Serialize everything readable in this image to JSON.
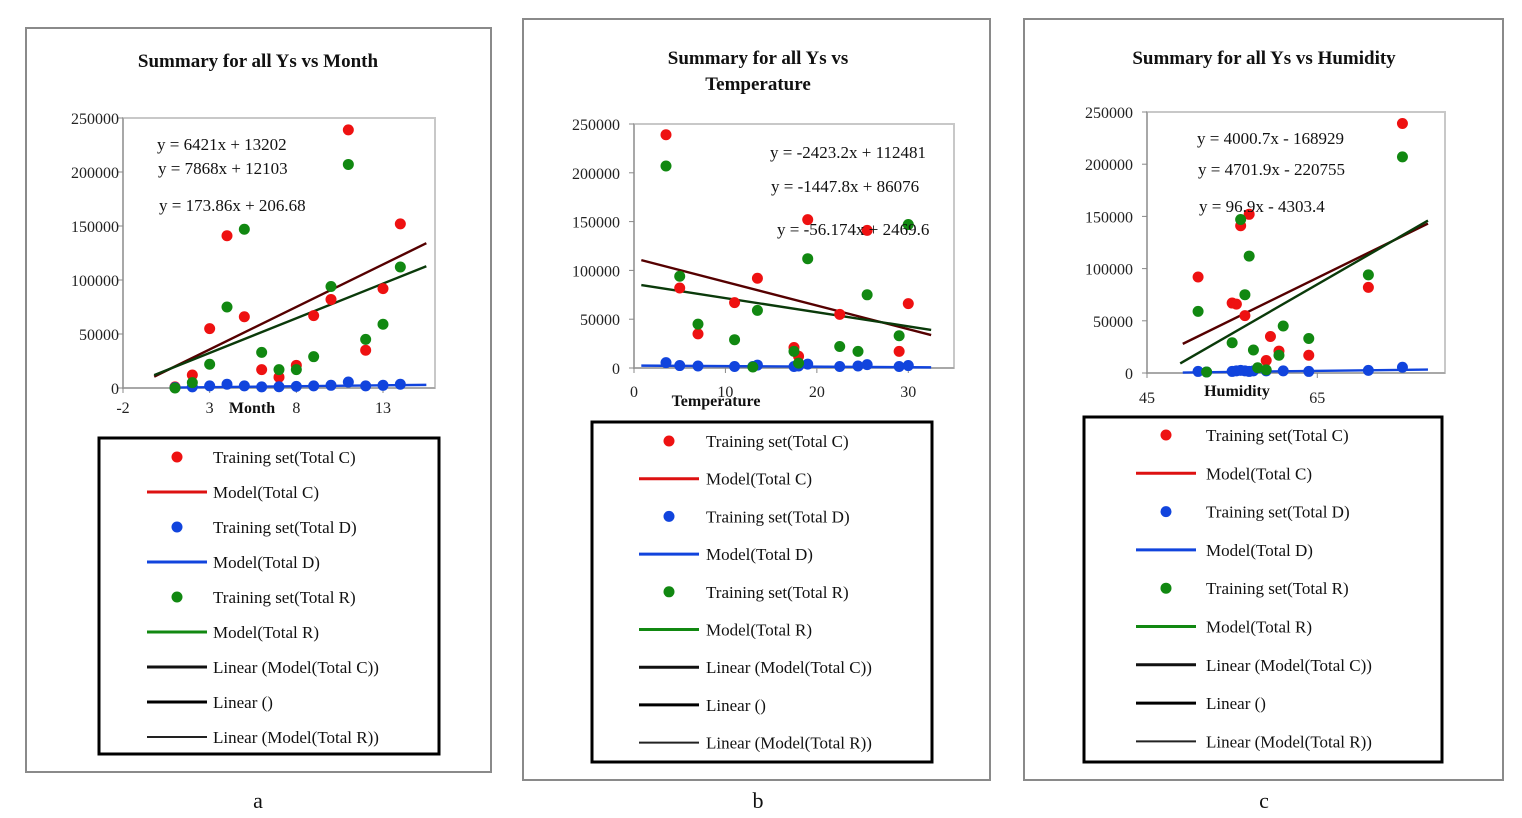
{
  "legend_entries": [
    {
      "label": "Training set(Total C)",
      "kind": "dot",
      "color": "#ee1111"
    },
    {
      "label": "Model(Total C)",
      "kind": "line",
      "color": "#dd1111",
      "w": 3
    },
    {
      "label": "Training set(Total D)",
      "kind": "dot",
      "color": "#1144dd"
    },
    {
      "label": "Model(Total D)",
      "kind": "line",
      "color": "#1144dd",
      "w": 3
    },
    {
      "label": "Training set(Total R)",
      "kind": "dot",
      "color": "#118811"
    },
    {
      "label": "Model(Total R)",
      "kind": "line",
      "color": "#118811",
      "w": 3
    },
    {
      "label": "Linear (Model(Total C))",
      "kind": "line",
      "color": "#111111",
      "w": 3
    },
    {
      "label": "Linear ()",
      "kind": "line",
      "color": "#000000",
      "w": 3
    },
    {
      "label": "Linear (Model(Total R))",
      "kind": "line",
      "color": "#222222",
      "w": 2
    }
  ],
  "colors": {
    "C": "#ee1111",
    "D": "#1144dd",
    "R": "#118811",
    "lineC": "#550000",
    "lineR": "#0a3a0a",
    "lineD": "#1144dd"
  },
  "chart_data": [
    {
      "type": "scatter",
      "panel_label": "a",
      "title": "Summary for all Ys vs Month",
      "xlabel": "Month",
      "ylabel": "",
      "xlim": [
        -2,
        16
      ],
      "ylim": [
        0,
        250000
      ],
      "xticks": [
        "-2",
        "3",
        "8",
        "13"
      ],
      "xtick_values": [
        -2,
        3,
        8,
        13
      ],
      "yticks": [
        "0",
        "50000",
        "100000",
        "150000",
        "200000",
        "250000"
      ],
      "ytick_values": [
        0,
        50000,
        100000,
        150000,
        200000,
        250000
      ],
      "equations": [
        "y = 6421x + 13202",
        "y = 7868x + 12103",
        "y = 173.86x + 206.68"
      ],
      "series": [
        {
          "name": "Training set(Total C)",
          "color": "#ee1111",
          "x": [
            1,
            2,
            3,
            4,
            5,
            6,
            7,
            8,
            9,
            10,
            11,
            12,
            13,
            14
          ],
          "y": [
            1000,
            12000,
            55000,
            141000,
            66000,
            17000,
            10000,
            21000,
            67000,
            82000,
            239000,
            35000,
            92000,
            152000
          ]
        },
        {
          "name": "Training set(Total D)",
          "color": "#1144dd",
          "x": [
            1,
            2,
            3,
            4,
            5,
            6,
            7,
            8,
            9,
            10,
            11,
            12,
            13,
            14
          ],
          "y": [
            500,
            1000,
            2000,
            3500,
            2000,
            1000,
            1200,
            1500,
            2000,
            2500,
            5500,
            2000,
            2500,
            3500
          ]
        },
        {
          "name": "Training set(Total R)",
          "color": "#118811",
          "x": [
            1,
            2,
            3,
            4,
            5,
            6,
            7,
            8,
            9,
            10,
            11,
            12,
            13,
            14
          ],
          "y": [
            0,
            5000,
            22000,
            75000,
            147000,
            33000,
            17000,
            17000,
            29000,
            94000,
            207000,
            45000,
            59000,
            112000
          ]
        }
      ],
      "trendlines": [
        {
          "series": "Total C",
          "color": "#550000",
          "slope": 7868,
          "intercept": 12103,
          "x_range": [
            -0.2,
            15.5
          ]
        },
        {
          "series": "Total R",
          "color": "#0a3a0a",
          "slope": 6421,
          "intercept": 13202,
          "x_range": [
            -0.2,
            15.5
          ]
        },
        {
          "series": "Total D",
          "color": "#1144dd",
          "slope": 173.86,
          "intercept": 206.68,
          "x_range": [
            1,
            15.5
          ]
        }
      ]
    },
    {
      "type": "scatter",
      "panel_label": "b",
      "title": "Summary for all Ys vs Temperature",
      "xlabel": "Temperature",
      "ylabel": "",
      "xlim": [
        0,
        35
      ],
      "ylim": [
        0,
        250000
      ],
      "xticks": [
        "0",
        "10",
        "20",
        "30"
      ],
      "xtick_values": [
        0,
        10,
        20,
        30
      ],
      "yticks": [
        "0",
        "50000",
        "100000",
        "150000",
        "200000",
        "250000"
      ],
      "ytick_values": [
        0,
        50000,
        100000,
        150000,
        200000,
        250000
      ],
      "equations": [
        "y = -2423.2x + 112481",
        "y = -1447.8x + 86076",
        "y = -56.174x + 2469.6"
      ],
      "series": [
        {
          "name": "Training set(Total C)",
          "color": "#ee1111",
          "x": [
            3.5,
            5,
            7,
            11,
            13.5,
            17.5,
            18,
            19,
            22.5,
            25.5,
            29,
            30
          ],
          "y": [
            239000,
            82000,
            35000,
            67000,
            92000,
            21000,
            12000,
            152000,
            55000,
            141000,
            17000,
            66000
          ]
        },
        {
          "name": "Training set(Total D)",
          "color": "#1144dd",
          "x": [
            3.5,
            5,
            7,
            11,
            13,
            13.5,
            17.5,
            18,
            19,
            22.5,
            24.5,
            25.5,
            29,
            30
          ],
          "y": [
            5500,
            2500,
            2000,
            1500,
            1500,
            3000,
            1500,
            2000,
            4000,
            1500,
            2000,
            3500,
            1500,
            2500
          ]
        },
        {
          "name": "Training set(Total R)",
          "color": "#118811",
          "x": [
            3.5,
            5,
            7,
            11,
            13,
            13.5,
            17.5,
            18,
            19,
            22.5,
            24.5,
            25.5,
            29,
            30
          ],
          "y": [
            207000,
            94000,
            45000,
            29000,
            1000,
            59000,
            17000,
            5000,
            112000,
            22000,
            17000,
            75000,
            33000,
            147000
          ]
        }
      ],
      "trendlines": [
        {
          "series": "Total C",
          "color": "#550000",
          "slope": -2423.2,
          "intercept": 112481,
          "x_range": [
            0.8,
            32.5
          ]
        },
        {
          "series": "Total R",
          "color": "#0a3a0a",
          "slope": -1447.8,
          "intercept": 86076,
          "x_range": [
            0.8,
            32.5
          ]
        },
        {
          "series": "Total D",
          "color": "#1144dd",
          "slope": -56.174,
          "intercept": 2469.6,
          "x_range": [
            0.8,
            32.5
          ]
        }
      ]
    },
    {
      "type": "scatter",
      "panel_label": "c",
      "title": "Summary for all Ys vs Humidity",
      "xlabel": "Humidity",
      "ylabel": "",
      "xlim": [
        45,
        80
      ],
      "ylim": [
        0,
        250000
      ],
      "xticks": [
        "45",
        "65"
      ],
      "xtick_values": [
        45,
        65
      ],
      "yticks": [
        "0",
        "50000",
        "100000",
        "150000",
        "200000",
        "250000"
      ],
      "ytick_values": [
        0,
        50000,
        100000,
        150000,
        200000,
        250000
      ],
      "equations": [
        "y = 4000.7x - 168929",
        "y = 4701.9x - 220755",
        "y = 96.9x - 4303.4"
      ],
      "series": [
        {
          "name": "Training set(Total C)",
          "color": "#ee1111",
          "x": [
            51,
            55,
            55.5,
            56,
            56.5,
            57,
            59,
            59.5,
            60.5,
            64,
            71,
            75
          ],
          "y": [
            92000,
            67000,
            66000,
            141000,
            55000,
            152000,
            12000,
            35000,
            21000,
            17000,
            82000,
            239000
          ]
        },
        {
          "name": "Training set(Total D)",
          "color": "#1144dd",
          "x": [
            51,
            52,
            55,
            55.5,
            56,
            56.5,
            57,
            57.5,
            59,
            61,
            64,
            71,
            75
          ],
          "y": [
            1500,
            1000,
            1500,
            2000,
            2500,
            2000,
            1500,
            2000,
            2000,
            2000,
            1500,
            2500,
            5500
          ]
        },
        {
          "name": "Training set(Total R)",
          "color": "#118811",
          "x": [
            51,
            52,
            55,
            56,
            56.5,
            57,
            57.5,
            58,
            59,
            60.5,
            61,
            64,
            71,
            75
          ],
          "y": [
            59000,
            1000,
            29000,
            147000,
            75000,
            112000,
            22000,
            5000,
            3000,
            17000,
            45000,
            33000,
            94000,
            207000
          ]
        }
      ],
      "trendlines": [
        {
          "series": "Total C",
          "color": "#550000",
          "slope": 4000.7,
          "intercept": -168929,
          "x_range": [
            49.2,
            78
          ]
        },
        {
          "series": "Total R",
          "color": "#0a3a0a",
          "slope": 4701.9,
          "intercept": -220755,
          "x_range": [
            48.9,
            78
          ]
        },
        {
          "series": "Total D",
          "color": "#1144dd",
          "slope": 96.9,
          "intercept": -4303.4,
          "x_range": [
            49.2,
            78
          ]
        }
      ]
    }
  ]
}
